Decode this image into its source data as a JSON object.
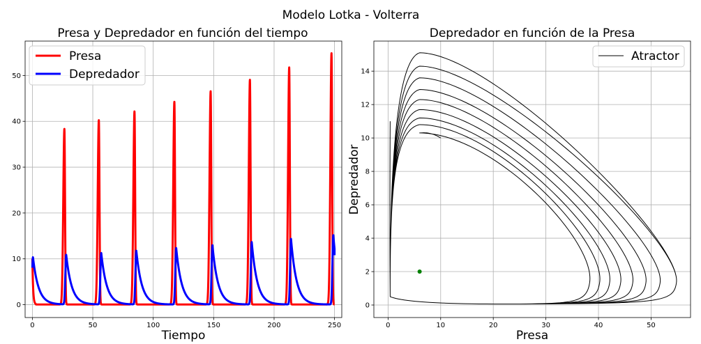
{
  "figure_title": "Modelo Lotka - Volterra",
  "chart_data": [
    {
      "type": "line",
      "title": "Presa y Depredador en función del tiempo",
      "xlabel": "Tiempo",
      "ylabel": "",
      "xlim": [
        -6,
        256
      ],
      "ylim": [
        -2.8,
        57.5
      ],
      "xticks": [
        0,
        50,
        100,
        150,
        200,
        250
      ],
      "yticks": [
        0,
        10,
        20,
        30,
        40,
        50
      ],
      "grid": true,
      "legend_position": "top-left",
      "series": [
        {
          "name": "Presa",
          "color": "#ff0000",
          "peak_times": [
            26.5,
            55,
            84.5,
            117.5,
            147.5,
            180,
            212.5,
            247.5
          ],
          "peak_values": [
            38.3,
            40.2,
            42.1,
            44.2,
            46.5,
            49.0,
            51.7,
            54.8
          ],
          "start_value": 10,
          "end_value": 0
        },
        {
          "name": "Depredador",
          "color": "#0000ff",
          "peak_times": [
            0.5,
            28,
            57,
            86,
            119,
            149,
            181.5,
            214,
            249
          ],
          "peak_values": [
            10.3,
            10.8,
            11.2,
            11.7,
            12.3,
            12.9,
            13.6,
            14.3,
            15.1
          ],
          "end_value": 10.8
        }
      ]
    },
    {
      "type": "line",
      "title": "Depredador en función de la Presa",
      "xlabel": "Presa",
      "ylabel": "Depredador",
      "xlim": [
        -2.7,
        57.5
      ],
      "ylim": [
        -0.75,
        15.8
      ],
      "xticks": [
        0,
        10,
        20,
        30,
        40,
        50
      ],
      "yticks": [
        0,
        2,
        4,
        6,
        8,
        10,
        12,
        14
      ],
      "grid": true,
      "legend_position": "top-right",
      "series": [
        {
          "name": "Atractor",
          "color": "#000000",
          "orbits": [
            {
              "max_presa": 38.3,
              "max_depredador": 10.3
            },
            {
              "max_presa": 40.2,
              "max_depredador": 10.8
            },
            {
              "max_presa": 42.1,
              "max_depredador": 11.2
            },
            {
              "max_presa": 44.2,
              "max_depredador": 11.7
            },
            {
              "max_presa": 46.5,
              "max_depredador": 12.3
            },
            {
              "max_presa": 49.0,
              "max_depredador": 12.9
            },
            {
              "max_presa": 51.7,
              "max_depredador": 13.6
            },
            {
              "max_presa": 54.8,
              "max_depredador": 14.3
            },
            {
              "max_presa": 54.8,
              "max_depredador": 15.1
            }
          ],
          "start": [
            10,
            10
          ],
          "end": [
            0.4,
            11
          ]
        },
        {
          "type": "scatter",
          "color": "#008000",
          "points": [
            [
              6,
              2
            ]
          ]
        }
      ]
    }
  ]
}
